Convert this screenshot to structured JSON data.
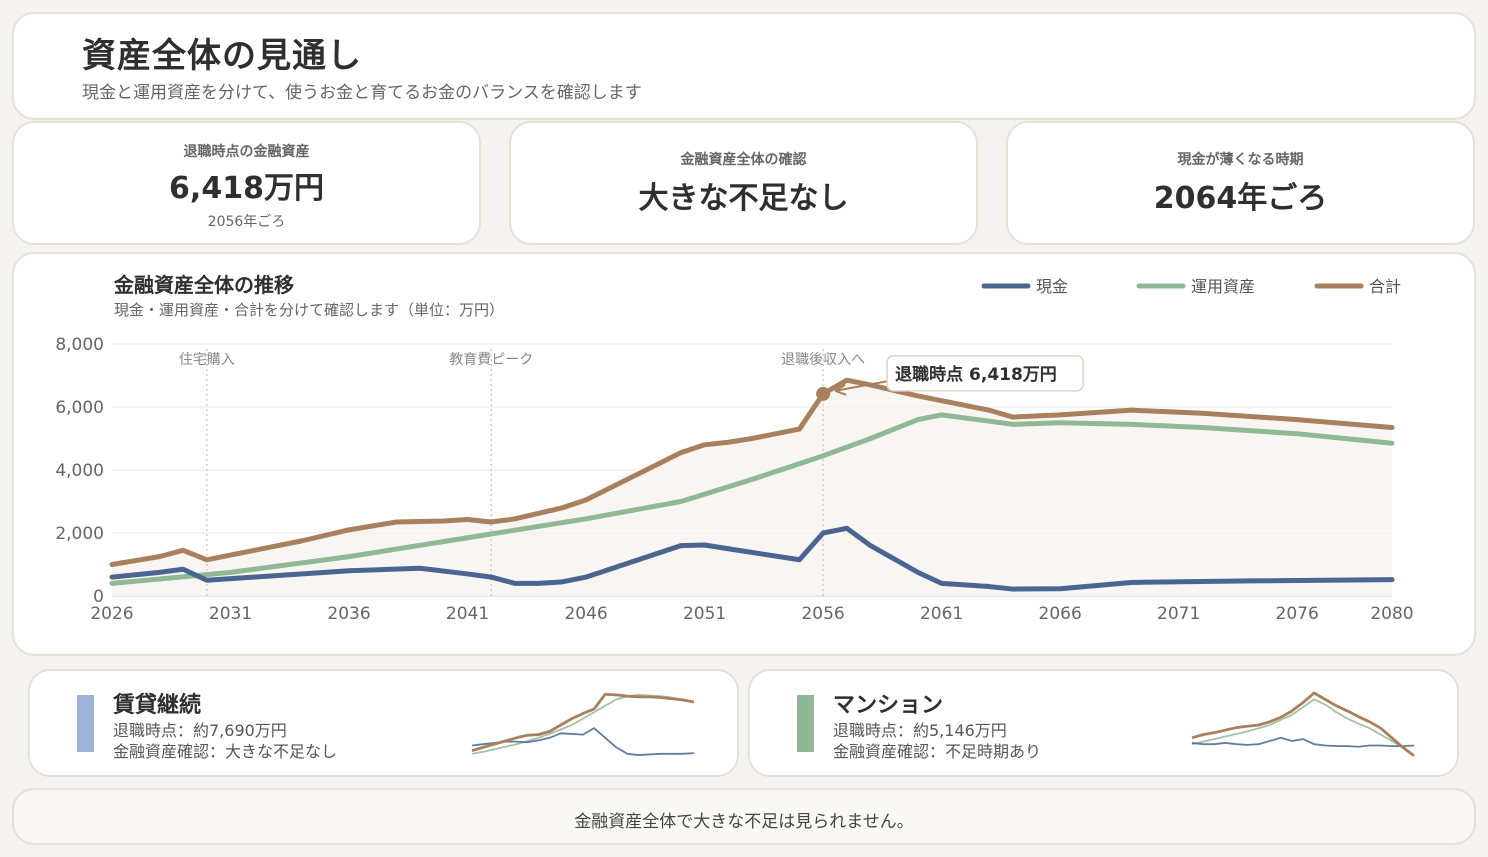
{
  "header": {
    "title": "資産全体の見通し",
    "subtitle": "現金と運用資産を分けて、使うお金と育てるお金のバランスを確認します"
  },
  "kpis": [
    {
      "label": "退職時点の金融資産",
      "value": "6,418万円",
      "sub": "2056年ごろ"
    },
    {
      "label": "金融資産全体の確認",
      "value": "大きな不足なし",
      "sub": ""
    },
    {
      "label": "現金が薄くなる時期",
      "value": "2064年ごろ",
      "sub": ""
    }
  ],
  "chart_data": {
    "type": "line",
    "title": "金融資産全体の推移",
    "subtitle": "現金・運用資産・合計を分けて確認します（単位：万円）",
    "xlim": [
      2026,
      2080
    ],
    "ylim": [
      0,
      8000
    ],
    "x_ticks": [
      2026,
      2031,
      2036,
      2041,
      2046,
      2051,
      2056,
      2061,
      2066,
      2071,
      2076,
      2080
    ],
    "y_ticks": [
      0,
      2000,
      4000,
      6000,
      8000
    ],
    "y_tick_labels": [
      "0",
      "2,000",
      "4,000",
      "6,000",
      "8,000"
    ],
    "legend_position": "top-right",
    "grid": true,
    "series": [
      {
        "name": "現金",
        "color": "#4a6590",
        "x": [
          2026,
          2028,
          2029,
          2030,
          2033,
          2035,
          2036,
          2039,
          2041,
          2042,
          2043,
          2044,
          2045,
          2046,
          2048,
          2050,
          2051,
          2052,
          2055,
          2056,
          2057,
          2058,
          2060,
          2061,
          2063,
          2064,
          2066,
          2069,
          2074,
          2080
        ],
        "y": [
          600,
          750,
          850,
          500,
          650,
          750,
          800,
          880,
          700,
          600,
          400,
          400,
          450,
          600,
          1100,
          1600,
          1620,
          1500,
          1150,
          2000,
          2150,
          1600,
          750,
          400,
          300,
          220,
          230,
          430,
          480,
          520
        ]
      },
      {
        "name": "運用資産",
        "color": "#8fb894",
        "x": [
          2026,
          2031,
          2036,
          2041,
          2046,
          2050,
          2053,
          2056,
          2058,
          2060,
          2061,
          2064,
          2066,
          2069,
          2072,
          2076,
          2080
        ],
        "y": [
          400,
          750,
          1250,
          1850,
          2450,
          3000,
          3700,
          4450,
          5000,
          5600,
          5750,
          5450,
          5500,
          5450,
          5350,
          5150,
          4850
        ]
      },
      {
        "name": "合計",
        "color": "#a8805d",
        "x": [
          2026,
          2028,
          2029,
          2030,
          2032,
          2034,
          2036,
          2038,
          2040,
          2041,
          2042,
          2043,
          2045,
          2046,
          2048,
          2050,
          2051,
          2052,
          2053,
          2055,
          2056,
          2057,
          2058,
          2060,
          2061,
          2063,
          2064,
          2066,
          2069,
          2072,
          2076,
          2080
        ],
        "y": [
          1000,
          1250,
          1450,
          1150,
          1450,
          1750,
          2100,
          2350,
          2380,
          2430,
          2350,
          2450,
          2800,
          3050,
          3800,
          4550,
          4800,
          4880,
          5000,
          5300,
          6418,
          6850,
          6700,
          6350,
          6200,
          5900,
          5680,
          5750,
          5900,
          5800,
          5600,
          5350
        ]
      }
    ],
    "markers": [
      {
        "x": 2030,
        "label": "住宅購入"
      },
      {
        "x": 2042,
        "label": "教育費ピーク"
      },
      {
        "x": 2056,
        "label": "退職後収入へ"
      }
    ],
    "callout": {
      "x": 2056,
      "y": 6418,
      "label": "退職時点 6,418万円"
    }
  },
  "scenarios": [
    {
      "title": "賃貸継続",
      "line1": "退職時点：約7,690万円",
      "line2": "金融資産確認：大きな不足なし",
      "color": "#9bb3d6",
      "spark": {
        "cash": [
          0.18,
          0.2,
          0.22,
          0.24,
          0.24,
          0.23,
          0.26,
          0.3,
          0.37,
          0.36,
          0.35,
          0.45,
          0.3,
          0.15,
          0.05,
          0.03,
          0.04,
          0.05,
          0.05,
          0.05,
          0.06
        ],
        "invest": [
          0.05,
          0.08,
          0.12,
          0.16,
          0.2,
          0.25,
          0.3,
          0.36,
          0.43,
          0.5,
          0.6,
          0.7,
          0.8,
          0.9,
          0.95,
          0.97,
          0.96,
          0.95,
          0.93,
          0.9,
          0.86
        ],
        "total": [
          0.1,
          0.15,
          0.2,
          0.25,
          0.3,
          0.34,
          0.35,
          0.4,
          0.5,
          0.6,
          0.68,
          0.75,
          0.98,
          0.97,
          0.95,
          0.94,
          0.94,
          0.93,
          0.91,
          0.89,
          0.86
        ]
      }
    },
    {
      "title": "マンション",
      "line1": "退職時点：約5,146万円",
      "line2": "金融資産確認：不足時期あり",
      "color": "#8fb894",
      "spark": {
        "cash": [
          0.22,
          0.2,
          0.2,
          0.22,
          0.2,
          0.19,
          0.2,
          0.25,
          0.3,
          0.25,
          0.28,
          0.2,
          0.18,
          0.17,
          0.17,
          0.16,
          0.18,
          0.18,
          0.17,
          0.17,
          0.18
        ],
        "invest": [
          0.2,
          0.24,
          0.28,
          0.32,
          0.36,
          0.4,
          0.45,
          0.5,
          0.58,
          0.66,
          0.78,
          0.9,
          0.82,
          0.7,
          0.6,
          0.52,
          0.45,
          0.35,
          0.25,
          0.15,
          0.02
        ],
        "total": [
          0.3,
          0.35,
          0.38,
          0.42,
          0.46,
          0.48,
          0.5,
          0.55,
          0.62,
          0.72,
          0.85,
          1.0,
          0.9,
          0.8,
          0.72,
          0.63,
          0.55,
          0.45,
          0.3,
          0.15,
          0.02
        ]
      }
    }
  ],
  "footer": {
    "text": "金融資産全体で大きな不足は見られません。"
  }
}
